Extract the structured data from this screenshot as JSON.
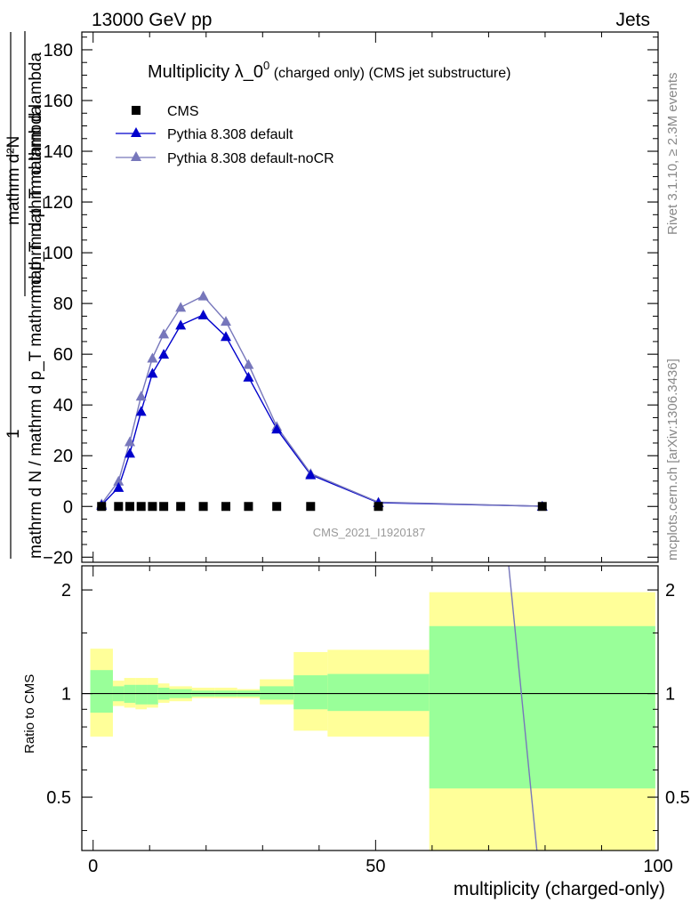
{
  "header": {
    "left": "13000 GeV pp",
    "right": "Jets"
  },
  "side_labels": {
    "rivet": "Rivet 3.1.10, ≥ 2.3M events",
    "mcplots": "mcplots.cern.ch [arXiv:1306.3436]"
  },
  "chart_data": [
    {
      "type": "scatter",
      "panel": "main",
      "title_main": "Multiplicity λ_0",
      "title_sup": "0",
      "title_rest": " (charged only) (CMS jet substructure)",
      "analysis_label": "CMS_2021_I1920187",
      "ylabel_num": "mathrm d²N",
      "ylabel_den": "mathrm d p_T mathrm d lambda",
      "ylabel_num2": "1",
      "ylabel_den2": "mathrm d N / mathrm d p_T mathrm d p_T mathrm d lambda",
      "xlim": [
        -2,
        100
      ],
      "ylim": [
        -22,
        187
      ],
      "y_ticks": [
        -20,
        0,
        20,
        40,
        60,
        80,
        100,
        120,
        140,
        160,
        180
      ],
      "legend_position": "top-left",
      "series": [
        {
          "name": "CMS",
          "marker": "square",
          "color": "#000000",
          "x": [
            1.5,
            4.5,
            6.5,
            8.5,
            10.5,
            12.5,
            15.5,
            19.5,
            23.5,
            27.5,
            32.5,
            38.5,
            50.5,
            79.5
          ],
          "y": [
            0,
            0,
            0,
            0,
            0,
            0,
            0,
            0,
            0,
            0,
            0,
            0,
            0,
            0
          ]
        },
        {
          "name": "Pythia 8.308 default",
          "marker": "triangle",
          "color": "#0000cc",
          "x": [
            1.5,
            4.5,
            6.5,
            8.5,
            10.5,
            12.5,
            15.5,
            19.5,
            23.5,
            27.5,
            32.5,
            38.5,
            50.5,
            79.5
          ],
          "y": [
            0.5,
            7.5,
            21,
            37.5,
            52.5,
            60,
            71.5,
            75.5,
            67,
            51,
            30.5,
            12.5,
            1.5,
            0.1
          ]
        },
        {
          "name": "Pythia 8.308 default-noCR",
          "marker": "triangle",
          "color": "#7777bb",
          "x": [
            1.5,
            4.5,
            6.5,
            8.5,
            10.5,
            12.5,
            15.5,
            19.5,
            23.5,
            27.5,
            32.5,
            38.5,
            50.5,
            79.5
          ],
          "y": [
            1,
            10,
            25.5,
            43.5,
            58.5,
            68,
            78.5,
            83,
            73,
            56,
            31.5,
            13,
            1.7,
            0.1
          ]
        }
      ]
    },
    {
      "type": "area",
      "panel": "ratio",
      "ylabel": "Ratio to CMS",
      "xlabel": "multiplicity (charged-only)",
      "xlim": [
        -2,
        100
      ],
      "ylim": [
        0.35,
        2.35
      ],
      "log_y": true,
      "x_ticks": [
        0,
        50,
        100
      ],
      "y_ticks": [
        0.5,
        1,
        2
      ],
      "bins": [
        {
          "lo": -0.5,
          "hi": 3.5,
          "inner": [
            0.88,
            1.17
          ],
          "outer": [
            0.75,
            1.35
          ]
        },
        {
          "lo": 3.5,
          "hi": 5.5,
          "inner": [
            0.95,
            1.05
          ],
          "outer": [
            0.92,
            1.09
          ]
        },
        {
          "lo": 5.5,
          "hi": 7.5,
          "inner": [
            0.94,
            1.06
          ],
          "outer": [
            0.91,
            1.11
          ]
        },
        {
          "lo": 7.5,
          "hi": 9.5,
          "inner": [
            0.93,
            1.06
          ],
          "outer": [
            0.9,
            1.11
          ]
        },
        {
          "lo": 9.5,
          "hi": 11.5,
          "inner": [
            0.93,
            1.06
          ],
          "outer": [
            0.91,
            1.11
          ]
        },
        {
          "lo": 11.5,
          "hi": 13.5,
          "inner": [
            0.96,
            1.04
          ],
          "outer": [
            0.94,
            1.07
          ]
        },
        {
          "lo": 13.5,
          "hi": 17.5,
          "inner": [
            0.97,
            1.03
          ],
          "outer": [
            0.95,
            1.05
          ]
        },
        {
          "lo": 17.5,
          "hi": 21.5,
          "inner": [
            0.98,
            1.02
          ],
          "outer": [
            0.97,
            1.04
          ]
        },
        {
          "lo": 21.5,
          "hi": 25.5,
          "inner": [
            0.98,
            1.02
          ],
          "outer": [
            0.97,
            1.04
          ]
        },
        {
          "lo": 25.5,
          "hi": 29.5,
          "inner": [
            0.98,
            1.02
          ],
          "outer": [
            0.97,
            1.03
          ]
        },
        {
          "lo": 29.5,
          "hi": 35.5,
          "inner": [
            0.96,
            1.05
          ],
          "outer": [
            0.93,
            1.1
          ]
        },
        {
          "lo": 35.5,
          "hi": 41.5,
          "inner": [
            0.9,
            1.13
          ],
          "outer": [
            0.78,
            1.32
          ]
        },
        {
          "lo": 41.5,
          "hi": 59.5,
          "inner": [
            0.89,
            1.14
          ],
          "outer": [
            0.75,
            1.34
          ]
        },
        {
          "lo": 59.5,
          "hi": 99.5,
          "inner": [
            0.53,
            1.57
          ],
          "outer": [
            0.3,
            1.97
          ]
        }
      ],
      "series": [
        {
          "name": "Pythia 8.308 default-noCR",
          "color": "#7777bb",
          "x": [
            73.3,
            78.7
          ],
          "y": [
            2.6,
            0.33
          ]
        }
      ]
    }
  ]
}
